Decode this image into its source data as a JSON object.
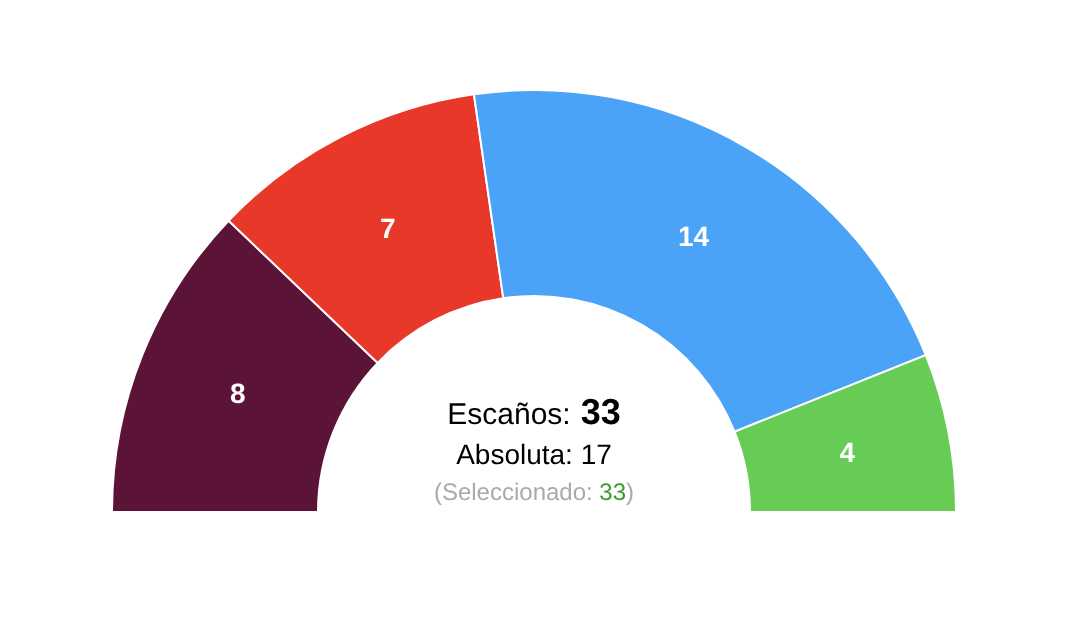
{
  "chart_data": {
    "type": "donut",
    "categories": [
      null,
      null,
      null,
      null
    ],
    "values": [
      8,
      7,
      14,
      4
    ],
    "colors": [
      "#5c1338",
      "#e8382a",
      "#4aa3f7",
      "#66cc55"
    ],
    "data_labels": true,
    "annotations": [
      "Escaños: 33",
      "Absoluta: 17",
      "(Seleccionado: 33)"
    ]
  }
}
